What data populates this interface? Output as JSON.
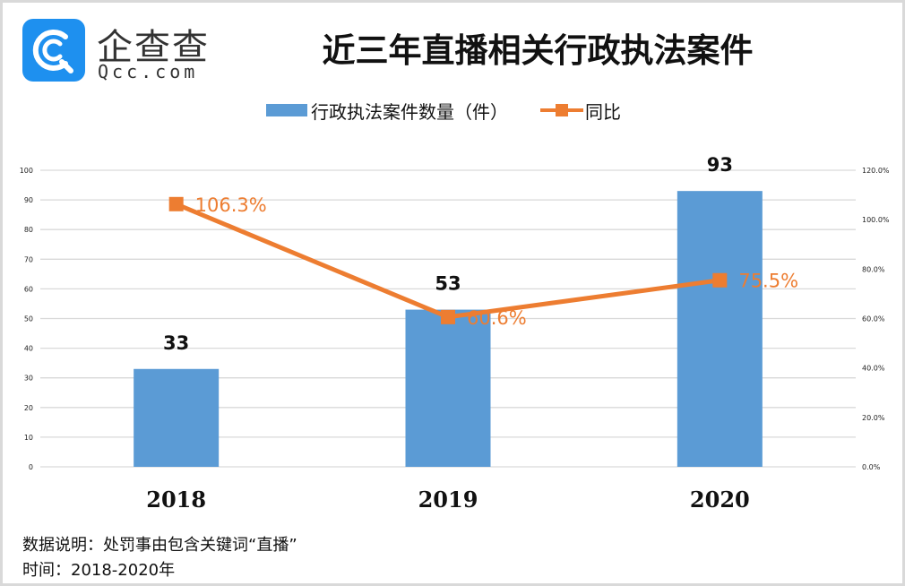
{
  "brand": {
    "name_cn": "企查查",
    "name_en": "Qcc.com",
    "color": "#1e90ef"
  },
  "chart_data": {
    "type": "bar",
    "title": "近三年直播相关行政执法案件",
    "categories": [
      "2018",
      "2019",
      "2020"
    ],
    "series": [
      {
        "name": "行政执法案件数量（件）",
        "type": "bar",
        "axis": "left",
        "color": "#5b9bd5",
        "values": [
          33,
          53,
          93
        ],
        "labels": [
          "33",
          "53",
          "93"
        ]
      },
      {
        "name": "同比",
        "type": "line",
        "axis": "right",
        "color": "#ed7d31",
        "marker": "square",
        "values": [
          106.3,
          60.6,
          75.5
        ],
        "labels": [
          "106.3%",
          "60.6%",
          "75.5%"
        ]
      }
    ],
    "y_left": {
      "range": [
        0,
        100
      ],
      "ticks": [
        0,
        10,
        20,
        30,
        40,
        50,
        60,
        70,
        80,
        90,
        100
      ],
      "tick_labels": [
        "0",
        "10",
        "20",
        "30",
        "40",
        "50",
        "60",
        "70",
        "80",
        "90",
        "100"
      ]
    },
    "y_right": {
      "range": [
        0,
        120
      ],
      "ticks": [
        0,
        20,
        40,
        60,
        80,
        100,
        120
      ],
      "tick_labels": [
        "0.0%",
        "20.0%",
        "40.0%",
        "60.0%",
        "80.0%",
        "100.0%",
        "120.0%"
      ]
    },
    "xlabel": "",
    "ylabel": "",
    "grid": true,
    "legend_position": "top-center"
  },
  "footer": {
    "note": "数据说明：处罚事由包含关键词“直播”",
    "period": "时间：2018-2020年"
  }
}
